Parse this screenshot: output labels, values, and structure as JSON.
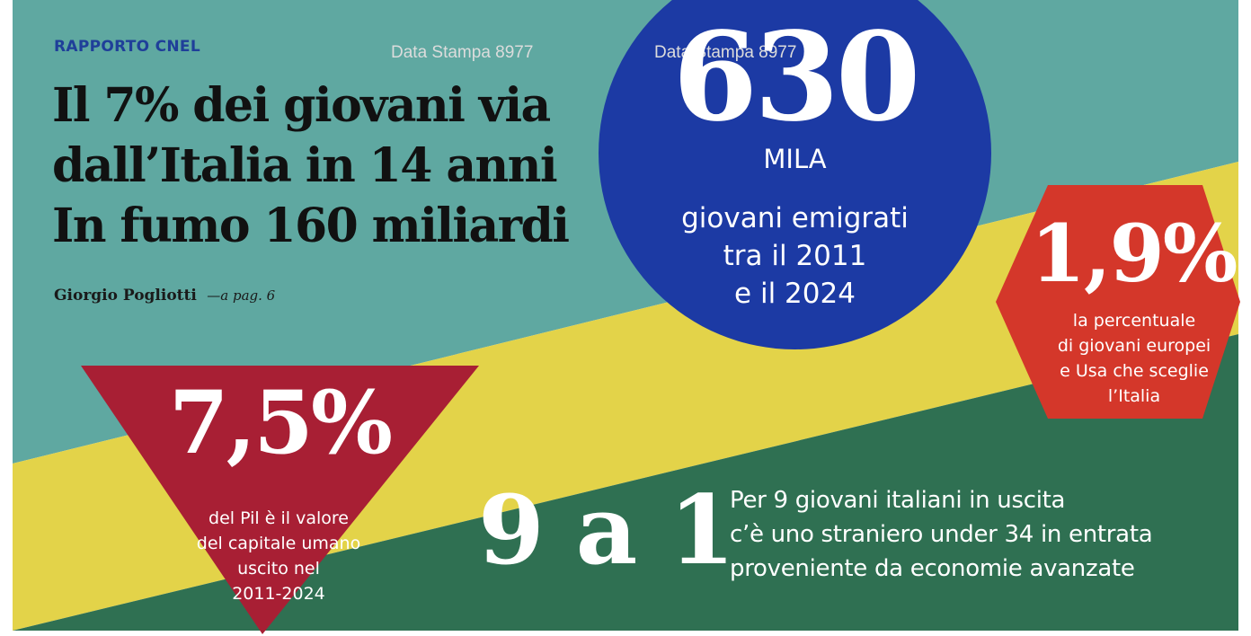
{
  "header": {
    "kicker": "RAPPORTO CNEL",
    "headline_lines": [
      "Il 7% dei giovani via",
      "dall’Italia in 14 anni",
      "In fumo 160 miliardi"
    ],
    "author": "Giorgio Pogliotti",
    "page_ref": "—a pag. 6"
  },
  "watermarks": [
    "Data Stampa 8977",
    "Data Stampa 8977"
  ],
  "stat_circle": {
    "number": "630",
    "unit": "MILA",
    "lines": [
      "giovani emigrati",
      "tra il 2011",
      "e il 2024"
    ]
  },
  "stat_hexagon": {
    "number": "1,9%",
    "lines": [
      "la percentuale",
      "di giovani europei",
      "e Usa che sceglie",
      "l’Italia"
    ]
  },
  "stat_triangle": {
    "number": "7,5%",
    "lines": [
      "del Pil è il valore",
      "del capitale umano",
      "uscito nel",
      "2011-2024"
    ]
  },
  "stat_ratio": {
    "number": "9 a 1",
    "lines": [
      "Per 9 giovani italiani in uscita",
      "c’è uno straniero under 34 in entrata",
      "proveniente da economie avanzate"
    ]
  },
  "colors": {
    "teal": "#5fa8a1",
    "yellow": "#e3d349",
    "green": "#2f7052",
    "blue": "#1c3aa4",
    "red_hexagon": "#d4372a",
    "red_triangle": "#a81f34",
    "kicker_blue": "#1f3f99"
  }
}
